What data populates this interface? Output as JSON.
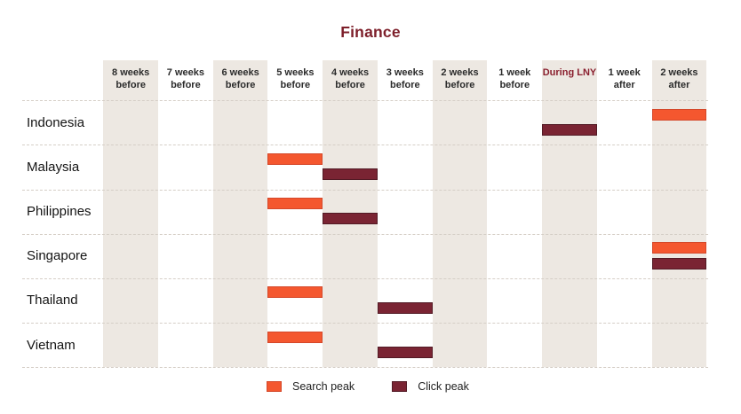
{
  "title": "Finance",
  "colors": {
    "title_maroon": "#7d1f2a",
    "during_lny_text": "#8a1f2e",
    "column_band": "#ede8e2",
    "search_peak": "#f4572f",
    "search_peak_border": "#d4482a",
    "click_peak": "#7a2433",
    "click_peak_border": "#521a25",
    "grid_dash": "#d5cec6"
  },
  "legend": [
    {
      "label": "Search peak",
      "color": "#f4572f",
      "border": "#d4482a"
    },
    {
      "label": "Click peak",
      "color": "#7a2433",
      "border": "#521a25"
    }
  ],
  "chart_data": {
    "type": "heatmap",
    "title": "Finance",
    "columns": [
      "8 weeks before",
      "7 weeks before",
      "6 weeks before",
      "5 weeks before",
      "4 weeks before",
      "3 weeks before",
      "2 weeks before",
      "1 week before",
      "During LNY",
      "1 week after",
      "2 weeks after"
    ],
    "shaded_columns": [
      0,
      2,
      4,
      6,
      8,
      10
    ],
    "highlight_column": 8,
    "rows": [
      "Indonesia",
      "Malaysia",
      "Philippines",
      "Singapore",
      "Thailand",
      "Vietnam"
    ],
    "series": [
      {
        "name": "Search peak",
        "color": "#f4572f",
        "border_color": "#d4482a",
        "peak_col_by_row": [
          10,
          3,
          3,
          10,
          3,
          3
        ],
        "peak_label_by_row": [
          "2 weeks after",
          "5 weeks before",
          "5 weeks before",
          "2 weeks after",
          "5 weeks before",
          "5 weeks before"
        ]
      },
      {
        "name": "Click peak",
        "color": "#7a2433",
        "border_color": "#521a25",
        "peak_col_by_row": [
          8,
          4,
          4,
          10,
          5,
          5
        ],
        "peak_label_by_row": [
          "During LNY",
          "4 weeks before",
          "4 weeks before",
          "2 weeks after",
          "3 weeks before",
          "3 weeks before"
        ]
      }
    ],
    "legend_position": "bottom",
    "grid": "horizontal-dashed"
  }
}
